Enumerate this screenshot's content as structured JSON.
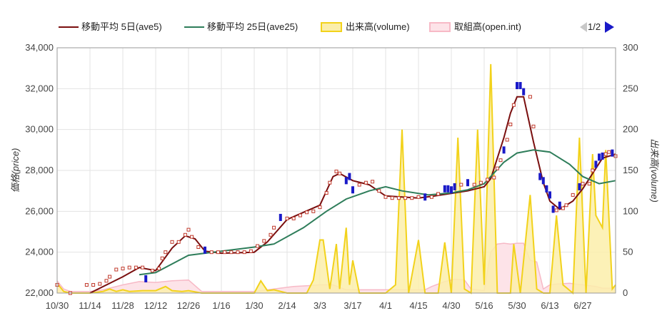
{
  "legend": {
    "ave5": "移動平均 5日(ave5)",
    "ave25": "移動平均 25日(ave25)",
    "volume": "出来高(volume)",
    "openint": "取組高(open.int)",
    "page": "1/2"
  },
  "colors": {
    "ave5": "#7a0f0f",
    "ave25": "#2e7d5a",
    "volume_line": "#f2d21b",
    "volume_fill": "#fbeeaa",
    "openint_line": "#f7b9c6",
    "openint_fill": "#fde3e8",
    "candle_up": "#ffffff",
    "candle_up_edge": "#c0392b",
    "candle_down": "#1a1ac8",
    "grid": "#e3e3e3"
  },
  "chart_data": {
    "type": "line",
    "ylabel": "価格(price)",
    "y2label": "出来高(volume)",
    "ylim": [
      22000,
      34000
    ],
    "y2lim": [
      0,
      300
    ],
    "yticks": [
      "22,000",
      "24,000",
      "26,000",
      "28,000",
      "30,000",
      "32,000",
      "34,000"
    ],
    "y2ticks": [
      "0",
      "50",
      "100",
      "150",
      "200",
      "250",
      "300"
    ],
    "x_tick_labels": [
      "10/30",
      "11/14",
      "11/28",
      "12/12",
      "12/26",
      "1/16",
      "1/30",
      "2/14",
      "3/3",
      "3/17",
      "4/1",
      "4/15",
      "4/30",
      "5/16",
      "5/30",
      "6/13",
      "6/27"
    ],
    "x_tick_index": [
      0,
      10,
      20,
      30,
      40,
      50,
      60,
      70,
      80,
      90,
      100,
      110,
      120,
      130,
      140,
      150,
      160
    ],
    "n_points": 171,
    "grid": true,
    "legend_position": "top",
    "price_series": [
      {
        "name": "ave5",
        "points": [
          [
            10,
            22000
          ],
          [
            20,
            22800
          ],
          [
            25,
            23250
          ],
          [
            30,
            23100
          ],
          [
            35,
            24200
          ],
          [
            39,
            24800
          ],
          [
            42,
            24650
          ],
          [
            45,
            24050
          ],
          [
            50,
            23950
          ],
          [
            60,
            24000
          ],
          [
            64,
            24500
          ],
          [
            70,
            25600
          ],
          [
            80,
            26300
          ],
          [
            84,
            27700
          ],
          [
            86,
            27850
          ],
          [
            90,
            27500
          ],
          [
            95,
            27300
          ],
          [
            100,
            26750
          ],
          [
            110,
            26650
          ],
          [
            115,
            26750
          ],
          [
            125,
            27000
          ],
          [
            130,
            27200
          ],
          [
            132,
            27600
          ],
          [
            136,
            29600
          ],
          [
            138,
            30800
          ],
          [
            140,
            31600
          ],
          [
            142,
            31600
          ],
          [
            145,
            29400
          ],
          [
            148,
            27400
          ],
          [
            150,
            26500
          ],
          [
            153,
            26100
          ],
          [
            157,
            26500
          ],
          [
            160,
            27100
          ],
          [
            166,
            28600
          ],
          [
            170,
            28800
          ]
        ]
      },
      {
        "name": "ave25",
        "points": [
          [
            25,
            22900
          ],
          [
            30,
            23000
          ],
          [
            40,
            23850
          ],
          [
            50,
            24050
          ],
          [
            60,
            24250
          ],
          [
            66,
            24400
          ],
          [
            75,
            25200
          ],
          [
            82,
            26000
          ],
          [
            88,
            26600
          ],
          [
            95,
            27000
          ],
          [
            100,
            27200
          ],
          [
            105,
            27000
          ],
          [
            113,
            26800
          ],
          [
            120,
            26900
          ],
          [
            125,
            27050
          ],
          [
            130,
            27350
          ],
          [
            136,
            28400
          ],
          [
            140,
            28850
          ],
          [
            145,
            29000
          ],
          [
            150,
            28900
          ],
          [
            156,
            28300
          ],
          [
            160,
            27700
          ],
          [
            165,
            27350
          ],
          [
            170,
            27500
          ]
        ]
      }
    ],
    "candles": [
      {
        "x": 0,
        "v": 22400,
        "c": "up"
      },
      {
        "x": 4,
        "v": 22000,
        "c": "up"
      },
      {
        "x": 9,
        "v": 22400,
        "c": "up"
      },
      {
        "x": 11,
        "v": 22400,
        "c": "up"
      },
      {
        "x": 13,
        "v": 22450,
        "c": "up"
      },
      {
        "x": 15,
        "v": 22600,
        "c": "up"
      },
      {
        "x": 16,
        "v": 22800,
        "c": "up"
      },
      {
        "x": 18,
        "v": 23150,
        "c": "up"
      },
      {
        "x": 20,
        "v": 23200,
        "c": "up"
      },
      {
        "x": 22,
        "v": 23250,
        "c": "up"
      },
      {
        "x": 24,
        "v": 23250,
        "c": "up"
      },
      {
        "x": 26,
        "v": 23250,
        "c": "up"
      },
      {
        "x": 27,
        "v": 22700,
        "c": "down"
      },
      {
        "x": 29,
        "v": 23100,
        "c": "up"
      },
      {
        "x": 31,
        "v": 23200,
        "c": "up"
      },
      {
        "x": 32,
        "v": 23700,
        "c": "up"
      },
      {
        "x": 33,
        "v": 24000,
        "c": "up"
      },
      {
        "x": 35,
        "v": 24500,
        "c": "up"
      },
      {
        "x": 37,
        "v": 24500,
        "c": "up"
      },
      {
        "x": 39,
        "v": 24850,
        "c": "up"
      },
      {
        "x": 40,
        "v": 25100,
        "c": "up"
      },
      {
        "x": 41,
        "v": 24750,
        "c": "up"
      },
      {
        "x": 43,
        "v": 24250,
        "c": "up"
      },
      {
        "x": 45,
        "v": 24100,
        "c": "down"
      },
      {
        "x": 47,
        "v": 24000,
        "c": "up"
      },
      {
        "x": 49,
        "v": 24000,
        "c": "up"
      },
      {
        "x": 51,
        "v": 24000,
        "c": "up"
      },
      {
        "x": 53,
        "v": 24000,
        "c": "up"
      },
      {
        "x": 55,
        "v": 24000,
        "c": "up"
      },
      {
        "x": 57,
        "v": 24000,
        "c": "up"
      },
      {
        "x": 59,
        "v": 24050,
        "c": "up"
      },
      {
        "x": 61,
        "v": 24300,
        "c": "up"
      },
      {
        "x": 63,
        "v": 24550,
        "c": "up"
      },
      {
        "x": 65,
        "v": 24850,
        "c": "up"
      },
      {
        "x": 66,
        "v": 25200,
        "c": "up"
      },
      {
        "x": 68,
        "v": 25700,
        "c": "down"
      },
      {
        "x": 70,
        "v": 25650,
        "c": "up"
      },
      {
        "x": 72,
        "v": 25650,
        "c": "up"
      },
      {
        "x": 74,
        "v": 25800,
        "c": "up"
      },
      {
        "x": 76,
        "v": 25950,
        "c": "up"
      },
      {
        "x": 78,
        "v": 26000,
        "c": "up"
      },
      {
        "x": 80,
        "v": 26200,
        "c": "up"
      },
      {
        "x": 82,
        "v": 26900,
        "c": "up"
      },
      {
        "x": 83,
        "v": 27400,
        "c": "up"
      },
      {
        "x": 85,
        "v": 27950,
        "c": "up"
      },
      {
        "x": 86,
        "v": 27850,
        "c": "up"
      },
      {
        "x": 88,
        "v": 27500,
        "c": "down"
      },
      {
        "x": 89,
        "v": 27700,
        "c": "down"
      },
      {
        "x": 90,
        "v": 27050,
        "c": "down"
      },
      {
        "x": 92,
        "v": 27300,
        "c": "up"
      },
      {
        "x": 94,
        "v": 27400,
        "c": "up"
      },
      {
        "x": 96,
        "v": 27450,
        "c": "up"
      },
      {
        "x": 98,
        "v": 27000,
        "c": "up"
      },
      {
        "x": 100,
        "v": 26700,
        "c": "up"
      },
      {
        "x": 102,
        "v": 26650,
        "c": "up"
      },
      {
        "x": 104,
        "v": 26650,
        "c": "up"
      },
      {
        "x": 106,
        "v": 26650,
        "c": "up"
      },
      {
        "x": 108,
        "v": 26650,
        "c": "up"
      },
      {
        "x": 110,
        "v": 26700,
        "c": "up"
      },
      {
        "x": 112,
        "v": 26700,
        "c": "down"
      },
      {
        "x": 114,
        "v": 26700,
        "c": "up"
      },
      {
        "x": 116,
        "v": 26850,
        "c": "up"
      },
      {
        "x": 118,
        "v": 27100,
        "c": "down"
      },
      {
        "x": 119,
        "v": 27100,
        "c": "down"
      },
      {
        "x": 120,
        "v": 27050,
        "c": "down"
      },
      {
        "x": 121,
        "v": 27200,
        "c": "down"
      },
      {
        "x": 123,
        "v": 27300,
        "c": "up"
      },
      {
        "x": 125,
        "v": 27400,
        "c": "down"
      },
      {
        "x": 127,
        "v": 27300,
        "c": "up"
      },
      {
        "x": 129,
        "v": 27400,
        "c": "up"
      },
      {
        "x": 131,
        "v": 27550,
        "c": "up"
      },
      {
        "x": 133,
        "v": 27650,
        "c": "up"
      },
      {
        "x": 134,
        "v": 28100,
        "c": "up"
      },
      {
        "x": 135,
        "v": 28500,
        "c": "up"
      },
      {
        "x": 136,
        "v": 29000,
        "c": "down"
      },
      {
        "x": 137,
        "v": 29500,
        "c": "up"
      },
      {
        "x": 138,
        "v": 30250,
        "c": "up"
      },
      {
        "x": 139,
        "v": 31200,
        "c": "up"
      },
      {
        "x": 140,
        "v": 32150,
        "c": "down"
      },
      {
        "x": 141,
        "v": 32150,
        "c": "down"
      },
      {
        "x": 142,
        "v": 31850,
        "c": "down"
      },
      {
        "x": 144,
        "v": 31600,
        "c": "up"
      },
      {
        "x": 145,
        "v": 30150,
        "c": "up"
      },
      {
        "x": 147,
        "v": 27700,
        "c": "down"
      },
      {
        "x": 148,
        "v": 27500,
        "c": "down"
      },
      {
        "x": 149,
        "v": 27100,
        "c": "down"
      },
      {
        "x": 150,
        "v": 26800,
        "c": "down"
      },
      {
        "x": 151,
        "v": 26100,
        "c": "down"
      },
      {
        "x": 152,
        "v": 26050,
        "c": "up"
      },
      {
        "x": 153,
        "v": 26300,
        "c": "down"
      },
      {
        "x": 154,
        "v": 26150,
        "c": "up"
      },
      {
        "x": 155,
        "v": 26300,
        "c": "up"
      },
      {
        "x": 157,
        "v": 26800,
        "c": "up"
      },
      {
        "x": 159,
        "v": 27200,
        "c": "down"
      },
      {
        "x": 160,
        "v": 27350,
        "c": "up"
      },
      {
        "x": 162,
        "v": 27350,
        "c": "up"
      },
      {
        "x": 163,
        "v": 28000,
        "c": "up"
      },
      {
        "x": 164,
        "v": 28300,
        "c": "down"
      },
      {
        "x": 165,
        "v": 28650,
        "c": "down"
      },
      {
        "x": 166,
        "v": 28700,
        "c": "down"
      },
      {
        "x": 167,
        "v": 28800,
        "c": "up"
      },
      {
        "x": 168,
        "v": 28900,
        "c": "up"
      },
      {
        "x": 169,
        "v": 28850,
        "c": "down"
      },
      {
        "x": 170,
        "v": 28700,
        "c": "up"
      }
    ],
    "volume": [
      [
        0,
        12
      ],
      [
        2,
        2
      ],
      [
        4,
        0
      ],
      [
        10,
        0
      ],
      [
        14,
        2
      ],
      [
        16,
        5
      ],
      [
        18,
        2
      ],
      [
        20,
        4
      ],
      [
        22,
        2
      ],
      [
        26,
        3
      ],
      [
        30,
        3
      ],
      [
        33,
        8
      ],
      [
        35,
        3
      ],
      [
        38,
        2
      ],
      [
        40,
        3
      ],
      [
        44,
        0
      ],
      [
        60,
        0
      ],
      [
        62,
        15
      ],
      [
        64,
        3
      ],
      [
        66,
        4
      ],
      [
        70,
        0
      ],
      [
        76,
        0
      ],
      [
        78,
        16
      ],
      [
        80,
        65
      ],
      [
        81,
        65
      ],
      [
        83,
        5
      ],
      [
        85,
        60
      ],
      [
        86,
        5
      ],
      [
        88,
        80
      ],
      [
        89,
        10
      ],
      [
        90,
        40
      ],
      [
        92,
        0
      ],
      [
        100,
        0
      ],
      [
        103,
        10
      ],
      [
        105,
        200
      ],
      [
        107,
        0
      ],
      [
        110,
        65
      ],
      [
        112,
        0
      ],
      [
        116,
        0
      ],
      [
        118,
        62
      ],
      [
        120,
        0
      ],
      [
        122,
        190
      ],
      [
        124,
        5
      ],
      [
        126,
        0
      ],
      [
        128,
        200
      ],
      [
        130,
        10
      ],
      [
        132,
        280
      ],
      [
        134,
        0
      ],
      [
        138,
        0
      ],
      [
        139,
        60
      ],
      [
        141,
        0
      ],
      [
        144,
        120
      ],
      [
        146,
        5
      ],
      [
        148,
        0
      ],
      [
        150,
        0
      ],
      [
        152,
        95
      ],
      [
        154,
        10
      ],
      [
        157,
        0
      ],
      [
        159,
        190
      ],
      [
        161,
        0
      ],
      [
        163,
        170
      ],
      [
        164,
        95
      ],
      [
        166,
        80
      ],
      [
        167,
        175
      ],
      [
        169,
        5
      ],
      [
        170,
        10
      ]
    ],
    "open_int": [
      [
        0,
        15
      ],
      [
        2,
        5
      ],
      [
        4,
        2
      ],
      [
        10,
        2
      ],
      [
        14,
        4
      ],
      [
        20,
        10
      ],
      [
        25,
        14
      ],
      [
        30,
        13
      ],
      [
        35,
        15
      ],
      [
        40,
        16
      ],
      [
        44,
        2
      ],
      [
        60,
        2
      ],
      [
        66,
        5
      ],
      [
        72,
        8
      ],
      [
        76,
        9
      ],
      [
        80,
        10
      ],
      [
        84,
        10
      ],
      [
        88,
        4
      ],
      [
        100,
        4
      ],
      [
        105,
        4
      ],
      [
        112,
        4
      ],
      [
        114,
        8
      ],
      [
        118,
        14
      ],
      [
        121,
        17
      ],
      [
        124,
        16
      ],
      [
        126,
        5
      ],
      [
        130,
        3
      ],
      [
        132,
        50
      ],
      [
        134,
        60
      ],
      [
        136,
        61
      ],
      [
        138,
        60
      ],
      [
        140,
        61
      ],
      [
        142,
        61
      ],
      [
        144,
        40
      ],
      [
        146,
        38
      ],
      [
        148,
        5
      ],
      [
        150,
        10
      ],
      [
        152,
        11
      ],
      [
        156,
        12
      ],
      [
        160,
        10
      ],
      [
        164,
        8
      ],
      [
        166,
        6
      ],
      [
        170,
        6
      ]
    ]
  }
}
